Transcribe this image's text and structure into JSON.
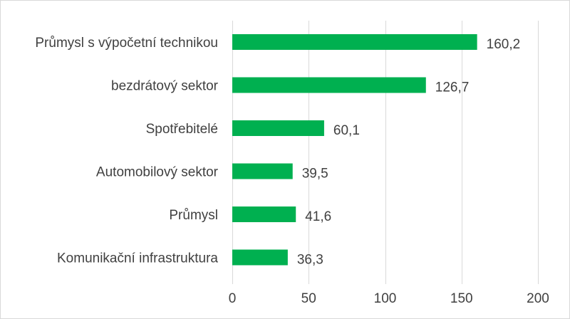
{
  "chart_data": {
    "type": "bar",
    "orientation": "horizontal",
    "categories": [
      "Průmysl s výpočetní technikou",
      "bezdrátový sektor",
      "Spotřebitelé",
      "Automobilový sektor",
      "Průmysl",
      "Komunikační infrastruktura"
    ],
    "values": [
      160.2,
      126.7,
      60.1,
      39.5,
      41.6,
      36.3
    ],
    "value_labels": [
      "160,2",
      "126,7",
      "60,1",
      "39,5",
      "41,6",
      "36,3"
    ],
    "x_ticks": [
      0,
      50,
      100,
      150,
      200
    ],
    "x_tick_labels": [
      "0",
      "50",
      "100",
      "150",
      "200"
    ],
    "xlim": [
      0,
      200
    ],
    "title": "",
    "xlabel": "",
    "ylabel": "",
    "grid": true,
    "legend": "none",
    "bar_color": "#00b050"
  }
}
